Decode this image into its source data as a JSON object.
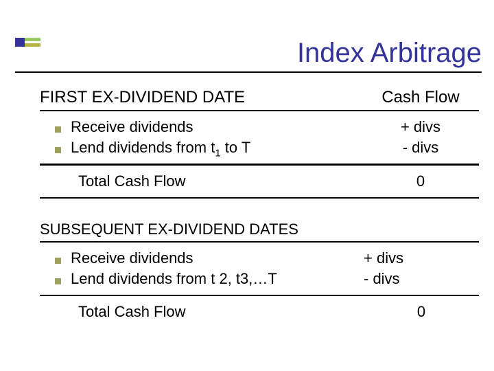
{
  "title": "Index Arbitrage",
  "colors": {
    "accent_navy": "#333399",
    "bullet_fill": "#a0a060",
    "rule": "#000000",
    "corner_olive": "#b5b545",
    "corner_green": "#99cc66"
  },
  "section1": {
    "heading_left": "FIRST EX-DIVIDEND DATE",
    "heading_right": "Cash Flow",
    "rows": [
      {
        "label": "Receive dividends",
        "value": "+ divs"
      },
      {
        "label_html": "Lend dividends from t<sub>1</sub> to T",
        "label_plain": "Lend dividends from t1 to T",
        "value": "- divs"
      }
    ],
    "total_label": "Total Cash Flow",
    "total_value": "0"
  },
  "section2": {
    "heading": "SUBSEQUENT EX-DIVIDEND DATES",
    "rows": [
      {
        "label": "Receive dividends",
        "value": "+ divs"
      },
      {
        "label_plain": "Lend dividends from t 2, t3,…T",
        "value": "- divs"
      }
    ],
    "total_label": "Total Cash Flow",
    "total_value": "0"
  }
}
